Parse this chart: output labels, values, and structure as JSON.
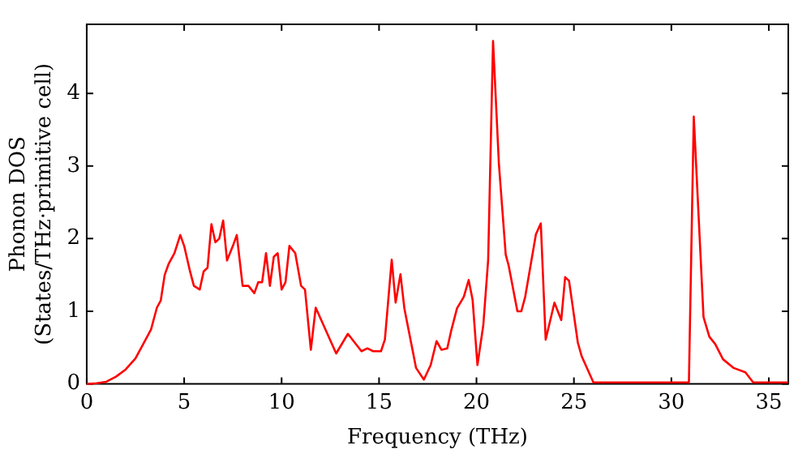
{
  "chart_data": {
    "type": "line",
    "xlabel": "Frequency (THz)",
    "ylabel": "Phonon DOS\n(States/THz·primitive cell)",
    "xlim": [
      0,
      36
    ],
    "xticks": [
      0,
      5,
      10,
      15,
      20,
      25,
      30,
      35
    ],
    "ylim": [
      0,
      4.95
    ],
    "yticks": [
      0,
      1,
      2,
      3,
      4
    ],
    "grid": false,
    "legend": false,
    "marker": "none",
    "line_style": "solid",
    "x": [
      0,
      0.5,
      1,
      1.5,
      2,
      2.5,
      3,
      3.3,
      3.6,
      3.8,
      4,
      4.2,
      4.5,
      4.8,
      5,
      5.3,
      5.5,
      5.8,
      6,
      6.2,
      6.4,
      6.6,
      6.8,
      7,
      7.2,
      7.5,
      7.7,
      8,
      8.3,
      8.6,
      8.8,
      9,
      9.2,
      9.4,
      9.6,
      9.8,
      10,
      10.2,
      10.4,
      10.7,
      11,
      11.2,
      11.5,
      11.75,
      12.2,
      12.8,
      13.4,
      14.1,
      14.4,
      14.7,
      15.1,
      15.3,
      15.65,
      15.85,
      16.1,
      16.3,
      16.9,
      17.3,
      17.65,
      17.95,
      18.2,
      18.5,
      18.7,
      19,
      19.35,
      19.6,
      19.8,
      20.05,
      20.35,
      20.6,
      20.85,
      21.15,
      21.5,
      21.65,
      22.1,
      22.3,
      22.5,
      23.05,
      23.3,
      23.55,
      24,
      24.35,
      24.55,
      24.75,
      25.2,
      25.4,
      26,
      30.9,
      31.15,
      31.65,
      31.95,
      32.25,
      32.65,
      33.2,
      33.8,
      34.2,
      36
    ],
    "series": [
      {
        "color": "#ff0000",
        "values": [
          0,
          0.01,
          0.03,
          0.1,
          0.2,
          0.35,
          0.6,
          0.75,
          1.05,
          1.15,
          1.5,
          1.65,
          1.8,
          2.05,
          1.9,
          1.55,
          1.35,
          1.3,
          1.55,
          1.6,
          2.2,
          1.95,
          2.0,
          2.25,
          1.7,
          1.9,
          2.05,
          1.35,
          1.35,
          1.25,
          1.4,
          1.4,
          1.8,
          1.35,
          1.75,
          1.8,
          1.3,
          1.4,
          1.9,
          1.8,
          1.35,
          1.3,
          0.47,
          1.05,
          0.78,
          0.42,
          0.69,
          0.45,
          0.49,
          0.45,
          0.45,
          0.61,
          1.71,
          1.12,
          1.51,
          1.04,
          0.22,
          0.06,
          0.26,
          0.59,
          0.47,
          0.49,
          0.73,
          1.04,
          1.2,
          1.43,
          1.16,
          0.26,
          0.81,
          1.71,
          4.72,
          3.03,
          1.78,
          1.63,
          1.0,
          1.0,
          1.2,
          2.06,
          2.21,
          0.61,
          1.12,
          0.88,
          1.47,
          1.42,
          0.57,
          0.38,
          0.02,
          0.02,
          3.68,
          0.92,
          0.65,
          0.55,
          0.34,
          0.22,
          0.16,
          0.02,
          0.02
        ]
      }
    ]
  }
}
